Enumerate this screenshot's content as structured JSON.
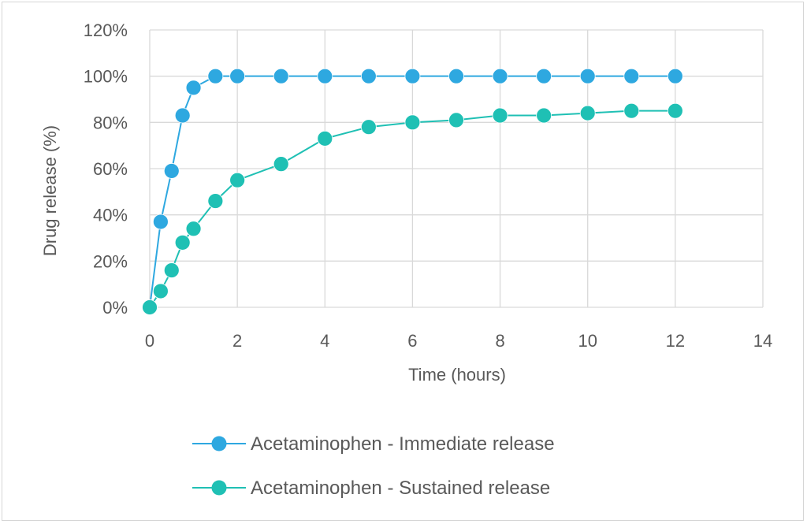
{
  "chart_data": {
    "type": "scatter",
    "mode": "lines+markers",
    "title": "",
    "xlabel": "Time (hours)",
    "ylabel": "Drug release (%)",
    "xlim": [
      0,
      14
    ],
    "ylim": [
      0,
      120
    ],
    "x_ticks": [
      "0",
      "2",
      "4",
      "6",
      "8",
      "10",
      "12",
      "14"
    ],
    "y_ticks": [
      "0%",
      "20%",
      "40%",
      "60%",
      "80%",
      "100%",
      "120%"
    ],
    "grid": true,
    "legend_position": "bottom",
    "series": [
      {
        "name": "Acetaminophen - Immediate release",
        "color": "#2ea8e0",
        "x": [
          0,
          0.25,
          0.5,
          0.75,
          1,
          1.5,
          2,
          3,
          4,
          5,
          6,
          7,
          8,
          9,
          10,
          11,
          12
        ],
        "y": [
          0,
          37,
          59,
          83,
          95,
          100,
          100,
          100,
          100,
          100,
          100,
          100,
          100,
          100,
          100,
          100,
          100
        ]
      },
      {
        "name": "Acetaminophen - Sustained release",
        "color": "#1fc0b4",
        "x": [
          0,
          0.25,
          0.5,
          0.75,
          1,
          1.5,
          2,
          3,
          4,
          5,
          6,
          7,
          8,
          9,
          10,
          11,
          12
        ],
        "y": [
          0,
          7,
          16,
          28,
          34,
          46,
          55,
          62,
          73,
          78,
          80,
          81,
          83,
          83,
          84,
          85,
          85
        ]
      }
    ]
  }
}
